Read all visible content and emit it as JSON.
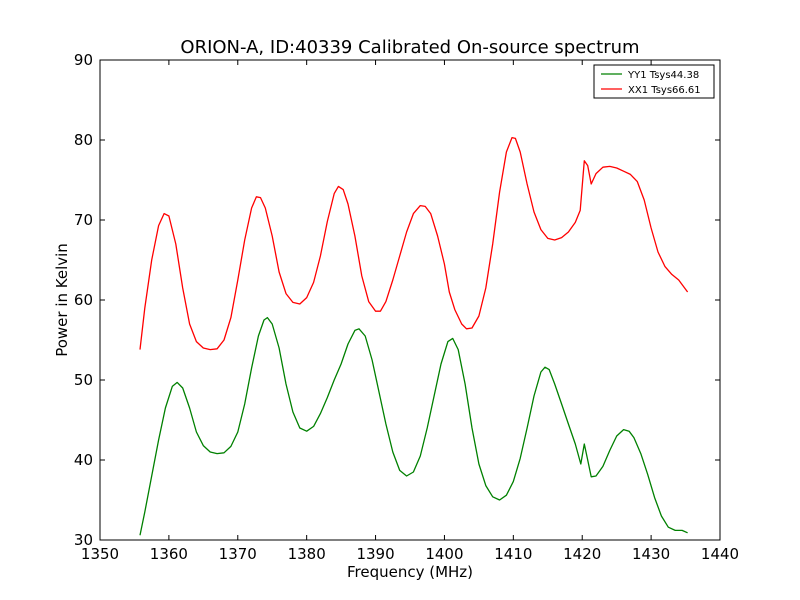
{
  "chart_data": {
    "type": "line",
    "title": "ORION-A, ID:40339 Calibrated On-source spectrum",
    "xlabel": "Frequency (MHz)",
    "ylabel": "Power in Kelvin",
    "xlim": [
      1350,
      1440
    ],
    "ylim": [
      30,
      90
    ],
    "xticks": [
      "1350",
      "1360",
      "1370",
      "1380",
      "1390",
      "1400",
      "1410",
      "1420",
      "1430",
      "1440"
    ],
    "yticks": [
      "30",
      "40",
      "50",
      "60",
      "70",
      "80",
      "90"
    ],
    "grid": false,
    "legend_position": "top-right",
    "series": [
      {
        "name": "YY1 Tsys44.38",
        "color": "#008000",
        "points": [
          [
            1355.8,
            30.6
          ],
          [
            1356.5,
            33.5
          ],
          [
            1357.5,
            38.0
          ],
          [
            1358.5,
            42.5
          ],
          [
            1359.5,
            46.5
          ],
          [
            1360.5,
            49.2
          ],
          [
            1361.2,
            49.7
          ],
          [
            1362.0,
            49.0
          ],
          [
            1363.0,
            46.5
          ],
          [
            1364.0,
            43.5
          ],
          [
            1365.0,
            41.8
          ],
          [
            1366.0,
            41.0
          ],
          [
            1367.0,
            40.8
          ],
          [
            1368.0,
            40.9
          ],
          [
            1369.0,
            41.7
          ],
          [
            1370.0,
            43.5
          ],
          [
            1371.0,
            47.0
          ],
          [
            1372.0,
            51.5
          ],
          [
            1373.0,
            55.5
          ],
          [
            1373.8,
            57.5
          ],
          [
            1374.3,
            57.8
          ],
          [
            1375.0,
            57.0
          ],
          [
            1376.0,
            54.0
          ],
          [
            1377.0,
            49.5
          ],
          [
            1378.0,
            46.0
          ],
          [
            1379.0,
            44.0
          ],
          [
            1380.0,
            43.6
          ],
          [
            1381.0,
            44.2
          ],
          [
            1382.0,
            45.8
          ],
          [
            1383.0,
            47.8
          ],
          [
            1384.0,
            50.0
          ],
          [
            1385.0,
            52.0
          ],
          [
            1386.0,
            54.5
          ],
          [
            1387.0,
            56.2
          ],
          [
            1387.6,
            56.4
          ],
          [
            1388.5,
            55.5
          ],
          [
            1389.5,
            52.5
          ],
          [
            1390.5,
            48.5
          ],
          [
            1391.5,
            44.5
          ],
          [
            1392.5,
            41.0
          ],
          [
            1393.5,
            38.7
          ],
          [
            1394.5,
            38.0
          ],
          [
            1395.5,
            38.5
          ],
          [
            1396.5,
            40.5
          ],
          [
            1397.5,
            44.0
          ],
          [
            1398.5,
            48.0
          ],
          [
            1399.5,
            52.0
          ],
          [
            1400.5,
            54.8
          ],
          [
            1401.2,
            55.2
          ],
          [
            1402.0,
            53.8
          ],
          [
            1403.0,
            49.5
          ],
          [
            1404.0,
            44.0
          ],
          [
            1405.0,
            39.5
          ],
          [
            1406.0,
            36.8
          ],
          [
            1407.0,
            35.4
          ],
          [
            1408.0,
            35.0
          ],
          [
            1409.0,
            35.6
          ],
          [
            1410.0,
            37.3
          ],
          [
            1411.0,
            40.2
          ],
          [
            1412.0,
            44.0
          ],
          [
            1413.0,
            48.0
          ],
          [
            1414.0,
            51.0
          ],
          [
            1414.6,
            51.6
          ],
          [
            1415.2,
            51.3
          ],
          [
            1416.0,
            49.5
          ],
          [
            1417.0,
            47.0
          ],
          [
            1418.0,
            44.5
          ],
          [
            1419.0,
            42.0
          ],
          [
            1419.8,
            39.5
          ],
          [
            1420.3,
            42.0
          ],
          [
            1420.8,
            40.0
          ],
          [
            1421.3,
            37.9
          ],
          [
            1422.0,
            38.0
          ],
          [
            1423.0,
            39.2
          ],
          [
            1424.0,
            41.2
          ],
          [
            1425.0,
            43.0
          ],
          [
            1426.0,
            43.8
          ],
          [
            1426.8,
            43.6
          ],
          [
            1427.5,
            42.8
          ],
          [
            1428.5,
            40.8
          ],
          [
            1429.5,
            38.2
          ],
          [
            1430.5,
            35.3
          ],
          [
            1431.5,
            33.0
          ],
          [
            1432.5,
            31.6
          ],
          [
            1433.5,
            31.2
          ],
          [
            1434.5,
            31.2
          ],
          [
            1435.3,
            30.9
          ]
        ]
      },
      {
        "name": "XX1 Tsys66.61",
        "color": "#ff0000",
        "points": [
          [
            1355.8,
            53.8
          ],
          [
            1356.5,
            59.0
          ],
          [
            1357.5,
            65.0
          ],
          [
            1358.5,
            69.3
          ],
          [
            1359.3,
            70.8
          ],
          [
            1360.0,
            70.5
          ],
          [
            1361.0,
            67.0
          ],
          [
            1362.0,
            61.5
          ],
          [
            1363.0,
            57.0
          ],
          [
            1364.0,
            54.8
          ],
          [
            1365.0,
            54.0
          ],
          [
            1366.0,
            53.8
          ],
          [
            1367.0,
            53.9
          ],
          [
            1368.0,
            55.0
          ],
          [
            1369.0,
            57.8
          ],
          [
            1370.0,
            62.5
          ],
          [
            1371.0,
            67.5
          ],
          [
            1372.0,
            71.5
          ],
          [
            1372.7,
            72.9
          ],
          [
            1373.3,
            72.8
          ],
          [
            1374.0,
            71.5
          ],
          [
            1375.0,
            68.0
          ],
          [
            1376.0,
            63.5
          ],
          [
            1377.0,
            60.8
          ],
          [
            1378.0,
            59.7
          ],
          [
            1379.0,
            59.5
          ],
          [
            1380.0,
            60.3
          ],
          [
            1381.0,
            62.2
          ],
          [
            1382.0,
            65.5
          ],
          [
            1383.0,
            69.8
          ],
          [
            1384.0,
            73.3
          ],
          [
            1384.6,
            74.2
          ],
          [
            1385.3,
            73.8
          ],
          [
            1386.0,
            72.0
          ],
          [
            1387.0,
            68.0
          ],
          [
            1388.0,
            63.0
          ],
          [
            1389.0,
            59.8
          ],
          [
            1390.0,
            58.6
          ],
          [
            1390.7,
            58.6
          ],
          [
            1391.5,
            59.8
          ],
          [
            1392.5,
            62.5
          ],
          [
            1393.5,
            65.5
          ],
          [
            1394.5,
            68.5
          ],
          [
            1395.5,
            70.8
          ],
          [
            1396.5,
            71.8
          ],
          [
            1397.2,
            71.7
          ],
          [
            1398.0,
            70.8
          ],
          [
            1399.0,
            68.0
          ],
          [
            1400.0,
            64.5
          ],
          [
            1400.7,
            61.0
          ],
          [
            1401.5,
            58.8
          ],
          [
            1402.5,
            57.0
          ],
          [
            1403.2,
            56.4
          ],
          [
            1404.0,
            56.5
          ],
          [
            1405.0,
            58.0
          ],
          [
            1406.0,
            61.5
          ],
          [
            1407.0,
            67.0
          ],
          [
            1408.0,
            73.5
          ],
          [
            1409.0,
            78.5
          ],
          [
            1409.8,
            80.3
          ],
          [
            1410.3,
            80.2
          ],
          [
            1411.0,
            78.5
          ],
          [
            1412.0,
            74.5
          ],
          [
            1413.0,
            71.0
          ],
          [
            1414.0,
            68.8
          ],
          [
            1415.0,
            67.7
          ],
          [
            1416.0,
            67.5
          ],
          [
            1417.0,
            67.8
          ],
          [
            1418.0,
            68.5
          ],
          [
            1419.0,
            69.7
          ],
          [
            1419.7,
            71.2
          ],
          [
            1420.3,
            77.4
          ],
          [
            1420.8,
            76.8
          ],
          [
            1421.3,
            74.5
          ],
          [
            1422.0,
            75.8
          ],
          [
            1423.0,
            76.6
          ],
          [
            1424.0,
            76.7
          ],
          [
            1425.0,
            76.5
          ],
          [
            1426.0,
            76.1
          ],
          [
            1427.0,
            75.7
          ],
          [
            1428.0,
            74.8
          ],
          [
            1429.0,
            72.5
          ],
          [
            1430.0,
            69.0
          ],
          [
            1431.0,
            66.0
          ],
          [
            1432.0,
            64.2
          ],
          [
            1433.0,
            63.2
          ],
          [
            1434.0,
            62.5
          ],
          [
            1435.3,
            61.0
          ]
        ]
      }
    ]
  }
}
